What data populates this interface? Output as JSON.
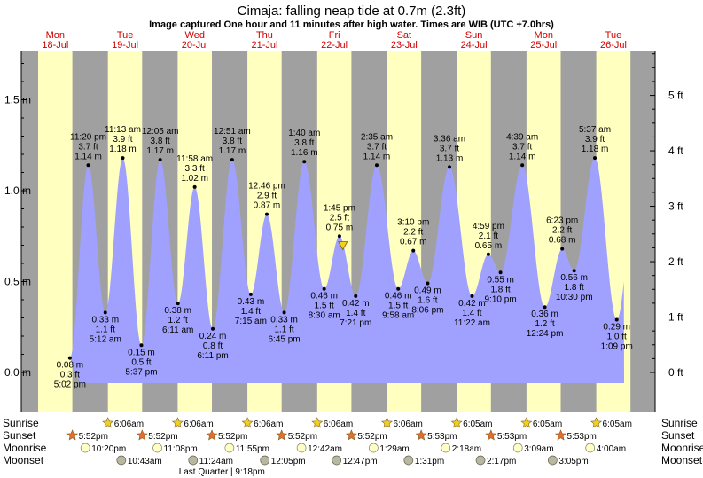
{
  "chart_data": {
    "type": "area",
    "title": "Cimaja: falling  neap tide at 0.7m (2.3ft)",
    "subtitle": "Image captured One hour and 11 minutes after high water. Times are WIB (UTC +7.0hrs)",
    "xlabel": "",
    "ylabel": "",
    "ylim": [
      -0.07,
      1.74
    ],
    "y_left_ticks": [
      {
        "value": 0.0,
        "label": "0.0 m"
      },
      {
        "value": 0.5,
        "label": "0.5 m"
      },
      {
        "value": 1.0,
        "label": "1.0 m"
      },
      {
        "value": 1.5,
        "label": "1.5 m"
      }
    ],
    "y_right_ticks": [
      {
        "value": 0,
        "label": "0 ft"
      },
      {
        "value": 1,
        "label": "1 ft"
      },
      {
        "value": 2,
        "label": "2 ft"
      },
      {
        "value": 3,
        "label": "3 ft"
      },
      {
        "value": 4,
        "label": "4 ft"
      },
      {
        "value": 5,
        "label": "5 ft"
      }
    ],
    "days": [
      {
        "dow": "Mon",
        "date": "18-Jul",
        "day": 0
      },
      {
        "dow": "Tue",
        "date": "19-Jul",
        "day": 1
      },
      {
        "dow": "Wed",
        "date": "20-Jul",
        "day": 2
      },
      {
        "dow": "Thu",
        "date": "21-Jul",
        "day": 3
      },
      {
        "dow": "Fri",
        "date": "22-Jul",
        "day": 4
      },
      {
        "dow": "Sat",
        "date": "23-Jul",
        "day": 5
      },
      {
        "dow": "Sun",
        "date": "24-Jul",
        "day": 6
      },
      {
        "dow": "Mon",
        "date": "25-Jul",
        "day": 7
      },
      {
        "dow": "Tue",
        "date": "26-Jul",
        "day": 8
      }
    ],
    "extremes": [
      {
        "day": 0,
        "time": "5:02 pm",
        "m": 0.08,
        "ft": "0.3 ft",
        "type": "low"
      },
      {
        "day": 0,
        "time": "11:20 pm",
        "m": 1.14,
        "ft": "3.7 ft",
        "type": "high"
      },
      {
        "day": 1,
        "time": "5:12 am",
        "m": 0.33,
        "ft": "1.1 ft",
        "type": "low"
      },
      {
        "day": 1,
        "time": "11:13 am",
        "m": 1.18,
        "ft": "3.9 ft",
        "type": "high"
      },
      {
        "day": 1,
        "time": "5:37 pm",
        "m": 0.15,
        "ft": "0.5 ft",
        "type": "low"
      },
      {
        "day": 2,
        "time": "12:05 am",
        "m": 1.17,
        "ft": "3.8 ft",
        "type": "high"
      },
      {
        "day": 2,
        "time": "6:11 am",
        "m": 0.38,
        "ft": "1.2 ft",
        "type": "low"
      },
      {
        "day": 2,
        "time": "11:58 am",
        "m": 1.02,
        "ft": "3.3 ft",
        "type": "high"
      },
      {
        "day": 2,
        "time": "6:11 pm",
        "m": 0.24,
        "ft": "0.8 ft",
        "type": "low"
      },
      {
        "day": 3,
        "time": "12:51 am",
        "m": 1.17,
        "ft": "3.8 ft",
        "type": "high"
      },
      {
        "day": 3,
        "time": "7:15 am",
        "m": 0.43,
        "ft": "1.4 ft",
        "type": "low"
      },
      {
        "day": 3,
        "time": "12:46 pm",
        "m": 0.87,
        "ft": "2.9 ft",
        "type": "high"
      },
      {
        "day": 3,
        "time": "6:45 pm",
        "m": 0.33,
        "ft": "1.1 ft",
        "type": "low"
      },
      {
        "day": 4,
        "time": "1:40 am",
        "m": 1.16,
        "ft": "3.8 ft",
        "type": "high"
      },
      {
        "day": 4,
        "time": "8:30 am",
        "m": 0.46,
        "ft": "1.5 ft",
        "type": "low"
      },
      {
        "day": 4,
        "time": "1:45 pm",
        "m": 0.75,
        "ft": "2.5 ft",
        "type": "high"
      },
      {
        "day": 4,
        "time": "7:21 pm",
        "m": 0.42,
        "ft": "1.4 ft",
        "type": "low"
      },
      {
        "day": 5,
        "time": "2:35 am",
        "m": 1.14,
        "ft": "3.7 ft",
        "type": "high"
      },
      {
        "day": 5,
        "time": "9:58 am",
        "m": 0.46,
        "ft": "1.5 ft",
        "type": "low"
      },
      {
        "day": 5,
        "time": "3:10 pm",
        "m": 0.67,
        "ft": "2.2 ft",
        "type": "high"
      },
      {
        "day": 5,
        "time": "8:06 pm",
        "m": 0.49,
        "ft": "1.6 ft",
        "type": "low"
      },
      {
        "day": 6,
        "time": "3:36 am",
        "m": 1.13,
        "ft": "3.7 ft",
        "type": "high"
      },
      {
        "day": 6,
        "time": "11:22 am",
        "m": 0.42,
        "ft": "1.4 ft",
        "type": "low"
      },
      {
        "day": 6,
        "time": "4:59 pm",
        "m": 0.65,
        "ft": "2.1 ft",
        "type": "high"
      },
      {
        "day": 6,
        "time": "9:10 pm",
        "m": 0.55,
        "ft": "1.8 ft",
        "type": "low"
      },
      {
        "day": 7,
        "time": "4:39 am",
        "m": 1.14,
        "ft": "3.7 ft",
        "type": "high"
      },
      {
        "day": 7,
        "time": "12:24 pm",
        "m": 0.36,
        "ft": "1.2 ft",
        "type": "low"
      },
      {
        "day": 7,
        "time": "6:23 pm",
        "m": 0.68,
        "ft": "2.2 ft",
        "type": "high"
      },
      {
        "day": 7,
        "time": "10:30 pm",
        "m": 0.56,
        "ft": "1.8 ft",
        "type": "low"
      },
      {
        "day": 8,
        "time": "5:37 am",
        "m": 1.18,
        "ft": "3.9 ft",
        "type": "high"
      },
      {
        "day": 8,
        "time": "1:09 pm",
        "m": 0.29,
        "ft": "1.0 ft",
        "type": "low"
      }
    ],
    "current_marker": {
      "day": 4,
      "time": "2:56 pm",
      "m": 0.7
    },
    "astro_labels": {
      "sunrise": "Sunrise",
      "sunset": "Sunset",
      "moonrise": "Moonrise",
      "moonset": "Moonset"
    },
    "sunrise": [
      {
        "day": 1,
        "time": "6:06am"
      },
      {
        "day": 2,
        "time": "6:06am"
      },
      {
        "day": 3,
        "time": "6:06am"
      },
      {
        "day": 4,
        "time": "6:06am"
      },
      {
        "day": 5,
        "time": "6:06am"
      },
      {
        "day": 6,
        "time": "6:05am"
      },
      {
        "day": 7,
        "time": "6:05am"
      },
      {
        "day": 8,
        "time": "6:05am"
      }
    ],
    "sunset": [
      {
        "day": 0,
        "time": "5:52pm"
      },
      {
        "day": 1,
        "time": "5:52pm"
      },
      {
        "day": 2,
        "time": "5:52pm"
      },
      {
        "day": 3,
        "time": "5:52pm"
      },
      {
        "day": 4,
        "time": "5:52pm"
      },
      {
        "day": 5,
        "time": "5:53pm"
      },
      {
        "day": 6,
        "time": "5:53pm"
      },
      {
        "day": 7,
        "time": "5:53pm"
      }
    ],
    "moonrise": [
      {
        "day": 0,
        "time": "10:20pm"
      },
      {
        "day": 1,
        "time": "11:08pm"
      },
      {
        "day": 2,
        "time": "11:55pm"
      },
      {
        "day": 4,
        "time": "12:42am"
      },
      {
        "day": 5,
        "time": "1:29am"
      },
      {
        "day": 6,
        "time": "2:18am"
      },
      {
        "day": 7,
        "time": "3:09am"
      },
      {
        "day": 8,
        "time": "4:00am"
      }
    ],
    "moonset": [
      {
        "day": 1,
        "time": "10:43am"
      },
      {
        "day": 2,
        "time": "11:24am"
      },
      {
        "day": 3,
        "time": "12:05pm"
      },
      {
        "day": 4,
        "time": "12:47pm"
      },
      {
        "day": 5,
        "time": "1:31pm"
      },
      {
        "day": 6,
        "time": "2:17pm"
      },
      {
        "day": 7,
        "time": "3:05pm"
      }
    ],
    "moon_phase": {
      "label": "Last Quarter | 9:18pm",
      "day": 2,
      "time": "9:18pm"
    },
    "colors": {
      "day": "#ffffc0",
      "night": "#a0a0a0",
      "water": "#a0a0ff",
      "sun": "#f0d020",
      "sunset": "#e07030",
      "moonrise": "#ffffc8",
      "moonset": "#b8b8a0",
      "day_label": "#d00000"
    }
  }
}
